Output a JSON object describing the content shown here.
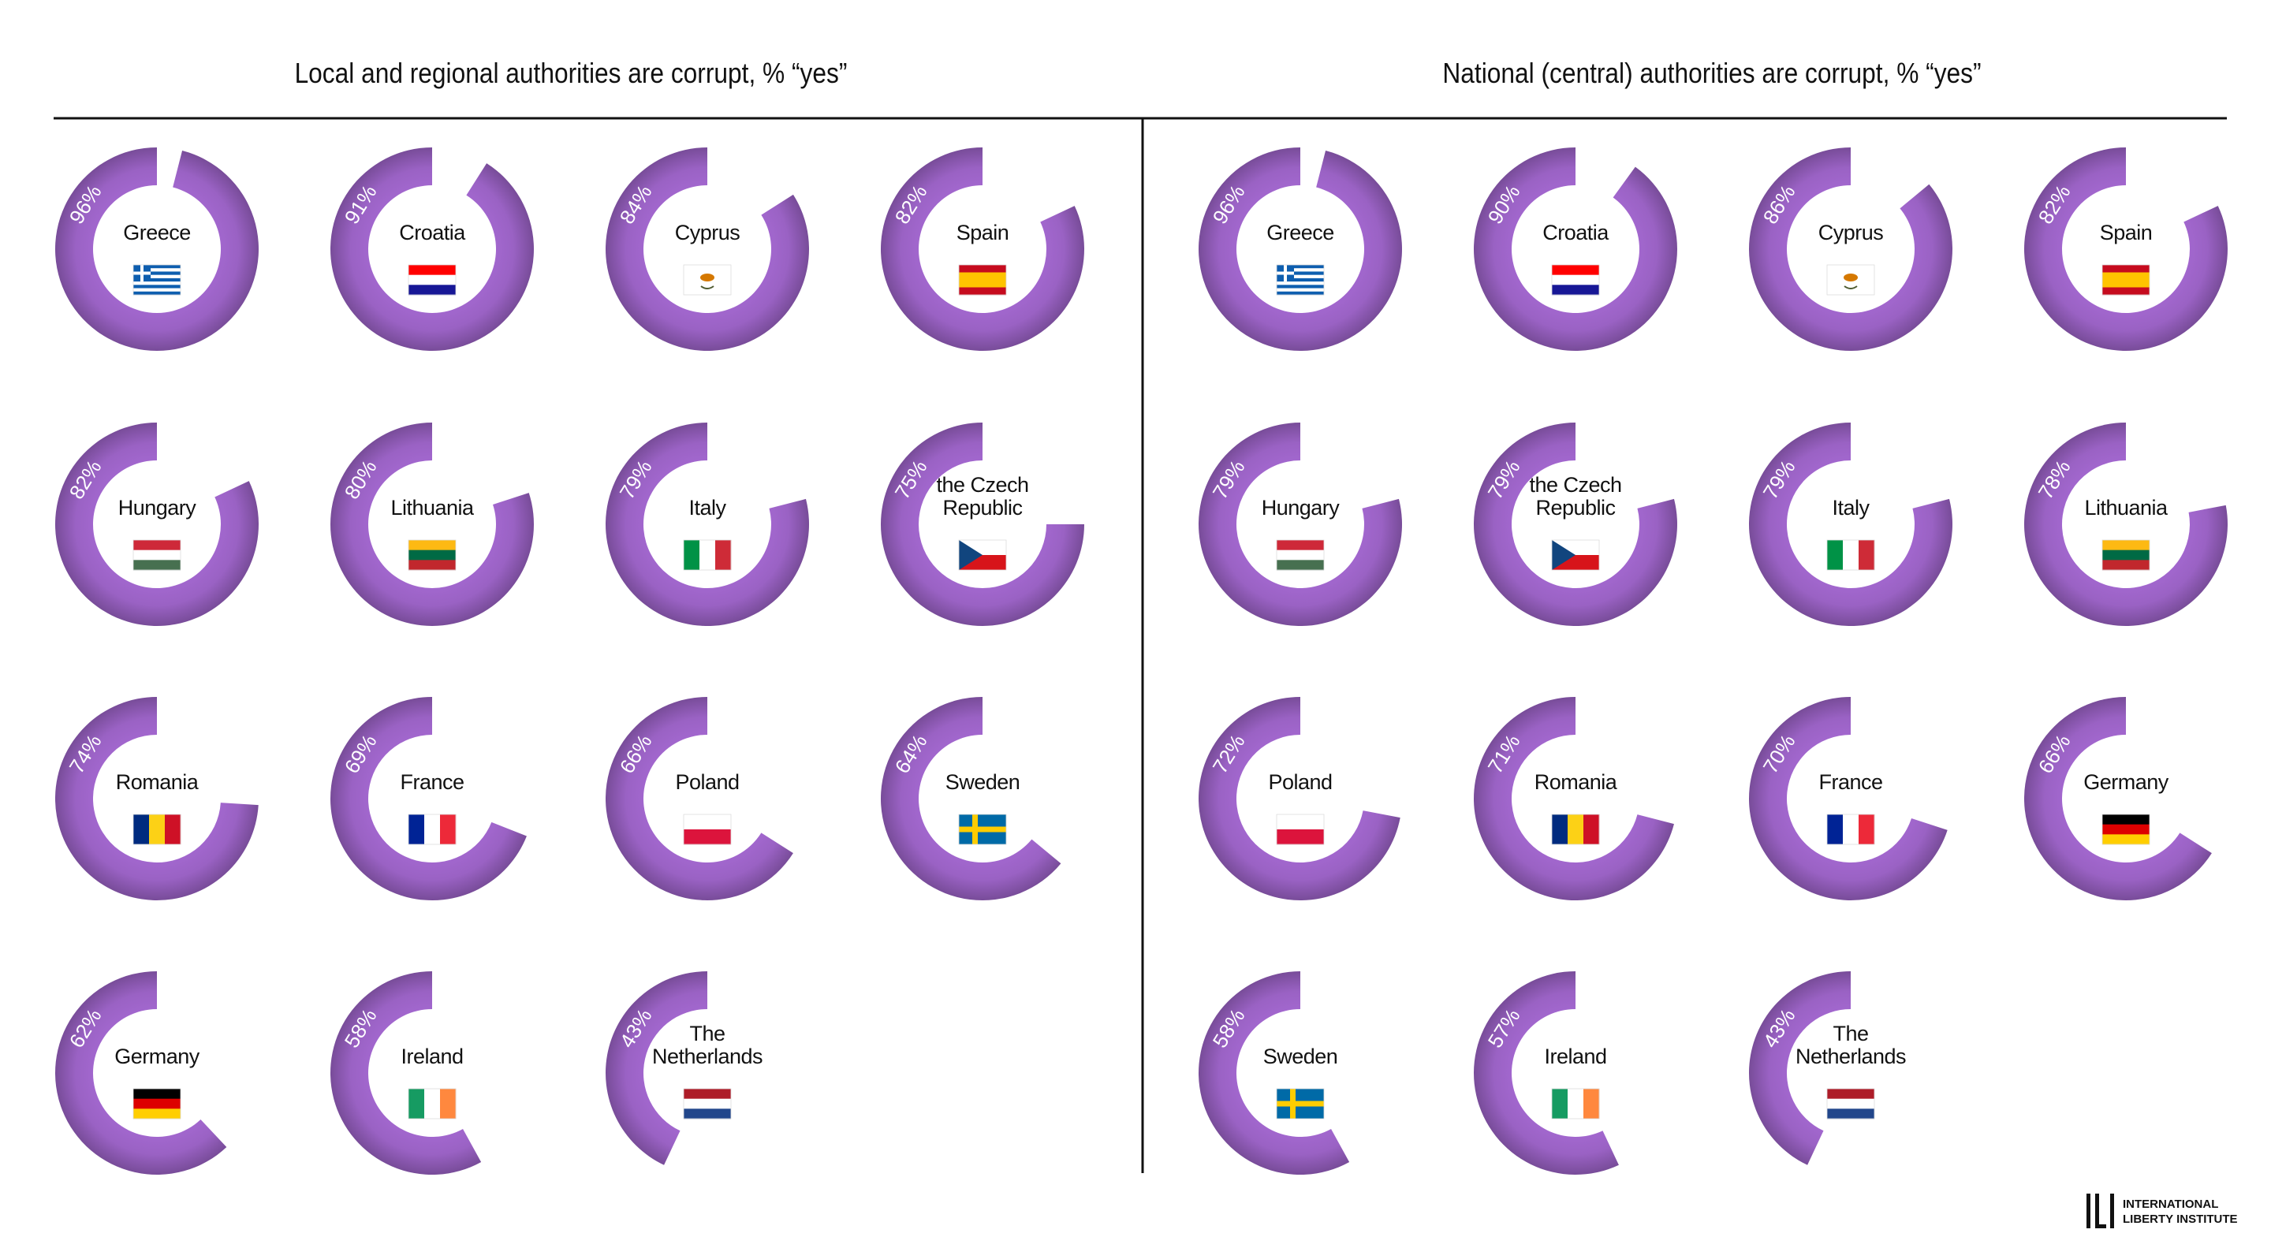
{
  "chart_data": [
    {
      "type": "donut",
      "title": "Local and regional authorities are corrupt, % “yes”",
      "categories": [
        "Greece",
        "Croatia",
        "Cyprus",
        "Spain",
        "Hungary",
        "Lithuania",
        "Italy",
        "the Czech Republic",
        "Romania",
        "France",
        "Poland",
        "Sweden",
        "Germany",
        "Ireland",
        "The Netherlands"
      ],
      "values": [
        96,
        91,
        84,
        82,
        82,
        80,
        79,
        75,
        74,
        69,
        66,
        64,
        62,
        58,
        43
      ],
      "value_labels": [
        "96%",
        "91%",
        "84%",
        "82%",
        "82%",
        "80%",
        "79%",
        "75%",
        "74%",
        "69%",
        "66%",
        "64%",
        "62%",
        "58%",
        "43%"
      ],
      "color": "#9a62c4"
    },
    {
      "type": "donut",
      "title": "National (central) authorities are corrupt, % “yes”",
      "categories": [
        "Greece",
        "Croatia",
        "Cyprus",
        "Spain",
        "Hungary",
        "the Czech Republic",
        "Italy",
        "Lithuania",
        "Poland",
        "Romania",
        "France",
        "Germany",
        "Sweden",
        "Ireland",
        "The Netherlands"
      ],
      "values": [
        96,
        90,
        86,
        82,
        79,
        79,
        79,
        78,
        72,
        71,
        70,
        66,
        58,
        57,
        43
      ],
      "value_labels": [
        "96%",
        "90%",
        "86%",
        "82%",
        "79%",
        "79%",
        "79%",
        "78%",
        "72%",
        "71%",
        "70%",
        "66%",
        "58%",
        "57%",
        "43%"
      ],
      "color": "#9a62c4"
    }
  ],
  "logo": {
    "line1": "INTERNATIONAL",
    "line2": "LIBERTY INSTITUTE"
  }
}
